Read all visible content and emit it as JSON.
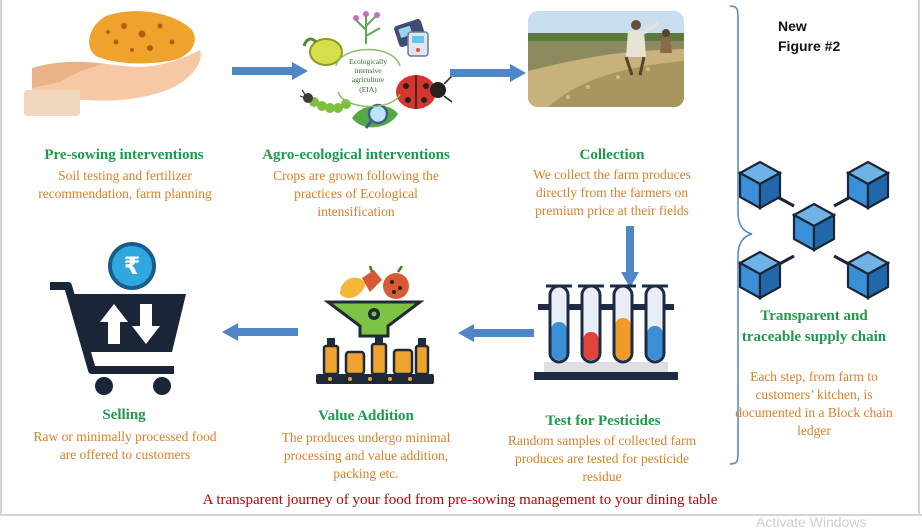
{
  "corner_label": {
    "line1": "New",
    "line2": "Figure #2"
  },
  "steps": {
    "pre_sowing": {
      "title": "Pre-sowing interventions",
      "desc": "Soil testing and fertilizer recommendation, farm planning"
    },
    "agro_ecological": {
      "title": "Agro-ecological interventions",
      "desc": "Crops are grown following the practices of Ecological intensification",
      "icon_text": "Ecologically intensive agriculture (EIA)"
    },
    "collection": {
      "title": "Collection",
      "desc": "We collect the farm produces directly from the farmers on premium price at their fields"
    },
    "test": {
      "title": "Test for Pesticides",
      "desc": "Random samples of collected farm produces are tested for pesticide residue"
    },
    "value_addition": {
      "title": "Value Addition",
      "desc": "The produces undergo minimal processing and value addition, packing etc."
    },
    "selling": {
      "title": "Selling",
      "desc": "Raw or minimally processed food are offered to customers",
      "currency_symbol": "₹"
    }
  },
  "blockchain": {
    "title": "Transparent and traceable supply chain",
    "desc": "Each step, from farm to customers’ kitchen, is documented in a Block chain ledger"
  },
  "caption": "A transparent journey of your food from pre-sowing management to your dining table",
  "watermark": "Activate Windows",
  "colors": {
    "title_green": "#1e9a4a",
    "desc_orange": "#d9802a",
    "caption_red": "#c00000",
    "arrow_blue": "#4f86c6",
    "cube_blue": "#2f7fc1"
  }
}
